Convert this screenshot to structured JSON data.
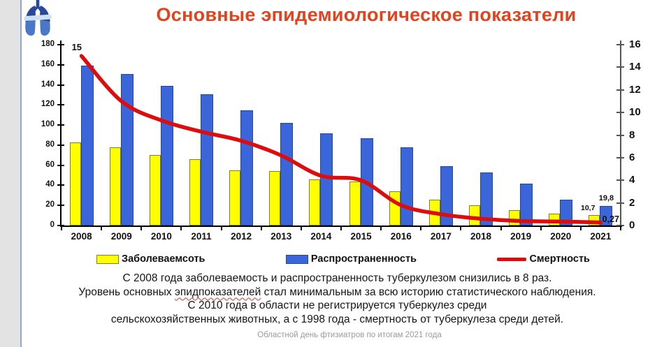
{
  "title": "Основные эпидемиологическое показатели",
  "logo": "lungs-emblem",
  "chart_data": {
    "type": "bar",
    "subtype": "grouped bars with overlaid line",
    "categories": [
      "2008",
      "2009",
      "2010",
      "2011",
      "2012",
      "2013",
      "2014",
      "2015",
      "2016",
      "2017",
      "2018",
      "2019",
      "2020",
      "2021"
    ],
    "series": [
      {
        "name": "Заболеваемсоть",
        "type": "bar",
        "axis": "left",
        "color": "#ffff00",
        "border": "#80802a",
        "values": [
          83,
          78,
          70,
          66,
          55,
          54,
          46,
          44,
          34,
          26,
          20,
          15,
          12,
          10.7
        ]
      },
      {
        "name": "Распространенность",
        "type": "bar",
        "axis": "left",
        "color": "#3a66d9",
        "border": "#24489e",
        "values": [
          159,
          151,
          139,
          131,
          115,
          102,
          92,
          87,
          78,
          59,
          53,
          42,
          26,
          19.8
        ]
      },
      {
        "name": "Смертность",
        "type": "line",
        "axis": "right",
        "color": "#dd0d0d",
        "values": [
          15,
          11,
          9.3,
          8.3,
          7.5,
          6.2,
          4.4,
          4.0,
          1.8,
          1.0,
          0.6,
          0.4,
          0.35,
          0.27
        ]
      }
    ],
    "left_axis": {
      "min": 0,
      "max": 180,
      "step": 20,
      "ticks": [
        0,
        20,
        40,
        60,
        80,
        100,
        120,
        140,
        160,
        180
      ]
    },
    "right_axis": {
      "min": 0,
      "max": 16,
      "step": 2,
      "ticks": [
        0,
        2,
        4,
        6,
        8,
        10,
        12,
        14,
        16
      ]
    },
    "point_labels": {
      "line_start": "15",
      "bar_yellow_2021": "10,7",
      "bar_blue_2021": "19,8",
      "line_end": "0,27"
    },
    "grid": false,
    "legend_position": "bottom"
  },
  "legend": [
    {
      "label": "Заболеваемсоть",
      "swatch": "yellow-box"
    },
    {
      "label": "Распространенность",
      "swatch": "blue-box"
    },
    {
      "label": "Смертность",
      "swatch": "red-line"
    }
  ],
  "caption": {
    "line1": "С 2008 года заболеваемость и  распространенность туберкулезом снизились в 8 раз.",
    "line2_pre": "Уровень основных ",
    "line2_underlined": "эпидпоказателей",
    "line2_post": " стал минимальным  за всю историю статистического наблюдения.",
    "line3": "С 2010 года в области не регистрируется туберкулез среди",
    "line4": "сельскохозяйственных животных, а с 1998 года - смертность от туберкулеза среди детей."
  },
  "footer": "Областной день фтизиатров по итогам 2021 года"
}
